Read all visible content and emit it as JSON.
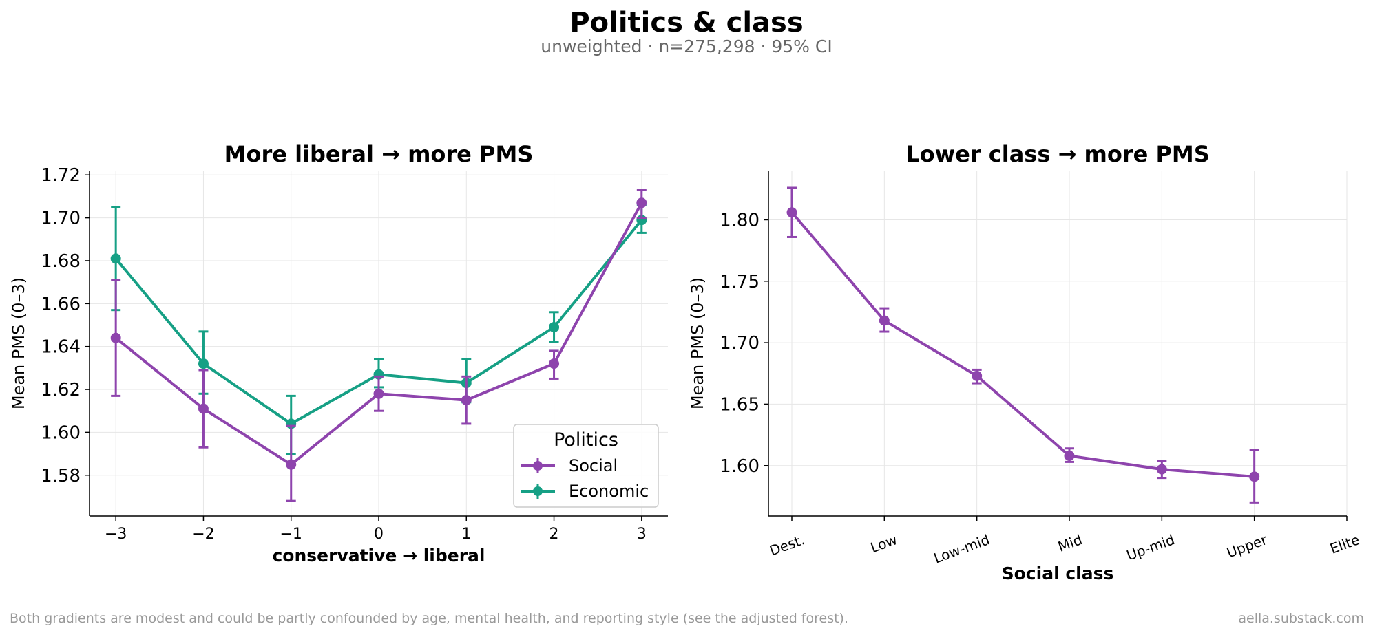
{
  "title": "Politics & class",
  "subtitle": "unweighted · n=275,298 · 95% CI",
  "footnote": "Both gradients are modest and could be partly confounded by age, mental health, and reporting style (see the adjusted forest).",
  "source": "aella.substack.com",
  "colors": {
    "social": "#8E44AD",
    "economic": "#16A085",
    "grid": "#e6e6e6",
    "axis": "#000000",
    "muted": "#999999"
  },
  "chart_data": [
    {
      "type": "line",
      "title": "More liberal → more PMS",
      "xlabel": "conservative → liberal",
      "ylabel": "Mean PMS (0–3)",
      "x": [
        -3,
        -2,
        -1,
        0,
        1,
        2,
        3
      ],
      "x_tick_labels": [
        "−3",
        "−2",
        "−1",
        "0",
        "1",
        "2",
        "3"
      ],
      "xlim": [
        -3.3,
        3.3
      ],
      "ylim": [
        1.561,
        1.722
      ],
      "y_ticks": [
        1.58,
        1.6,
        1.62,
        1.64,
        1.66,
        1.68,
        1.7,
        1.72
      ],
      "y_tick_labels": [
        "1.58",
        "1.60",
        "1.62",
        "1.64",
        "1.66",
        "1.68",
        "1.70",
        "1.72"
      ],
      "grid": true,
      "error_bars": "95% CI",
      "legend": {
        "title": "Politics",
        "placement": "lower-right"
      },
      "series": [
        {
          "name": "Social",
          "color": "#8E44AD",
          "values": [
            1.644,
            1.611,
            1.585,
            1.618,
            1.615,
            1.632,
            1.707
          ],
          "ci_low": [
            1.617,
            1.593,
            1.568,
            1.61,
            1.604,
            1.625,
            1.7
          ],
          "ci_high": [
            1.671,
            1.629,
            1.603,
            1.626,
            1.626,
            1.638,
            1.713
          ]
        },
        {
          "name": "Economic",
          "color": "#16A085",
          "values": [
            1.681,
            1.632,
            1.604,
            1.627,
            1.623,
            1.649,
            1.699
          ],
          "ci_low": [
            1.657,
            1.618,
            1.59,
            1.621,
            1.614,
            1.642,
            1.693
          ],
          "ci_high": [
            1.705,
            1.647,
            1.617,
            1.634,
            1.634,
            1.656,
            1.706
          ]
        }
      ]
    },
    {
      "type": "line",
      "title": "Lower class → more PMS",
      "xlabel": "Social class",
      "ylabel": "Mean PMS (0–3)",
      "categories": [
        "Dest.",
        "Low",
        "Low-mid",
        "Mid",
        "Up-mid",
        "Upper",
        "Elite"
      ],
      "ylim": [
        1.559,
        1.84
      ],
      "y_ticks": [
        1.6,
        1.65,
        1.7,
        1.75,
        1.8
      ],
      "y_tick_labels": [
        "1.60",
        "1.65",
        "1.70",
        "1.75",
        "1.80"
      ],
      "grid": true,
      "error_bars": "95% CI",
      "series": [
        {
          "color": "#8E44AD",
          "values": [
            1.806,
            1.718,
            1.673,
            1.608,
            1.597,
            1.591,
            null
          ],
          "ci_low": [
            1.786,
            1.709,
            1.667,
            1.603,
            1.59,
            1.57,
            null
          ],
          "ci_high": [
            1.826,
            1.728,
            1.678,
            1.614,
            1.604,
            1.613,
            null
          ]
        }
      ]
    }
  ]
}
